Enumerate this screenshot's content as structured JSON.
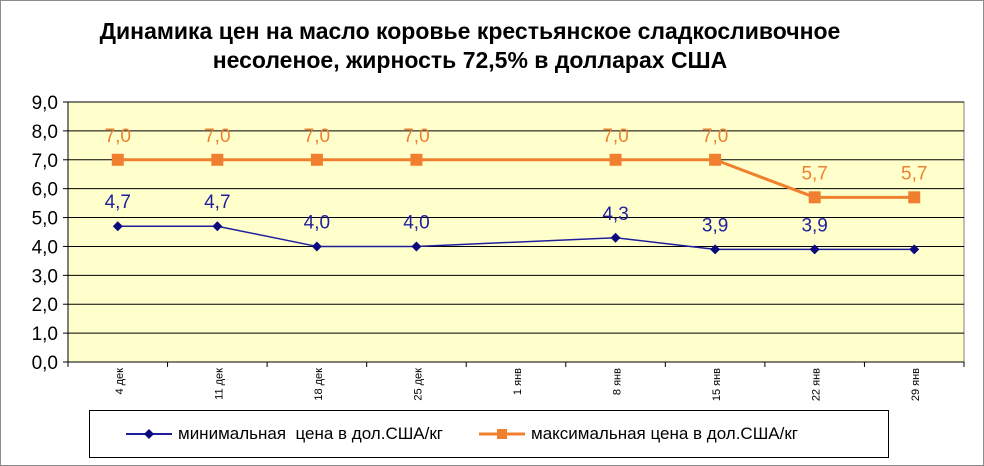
{
  "chart_data": {
    "type": "line",
    "title": "Динамика цен на масло коровье крестьянское сладкосливочное несоленое, жирность 72,5%  в долларах США",
    "categories": [
      "4 дек",
      "11 дек",
      "18 дек",
      "25 дек",
      "1 янв",
      "8 янв",
      "15 янв",
      "22 янв",
      "29 янв"
    ],
    "y_ticks": [
      "0,0",
      "1,0",
      "2,0",
      "3,0",
      "4,0",
      "5,0",
      "6,0",
      "7,0",
      "8,0",
      "9,0"
    ],
    "ylim": [
      0,
      9
    ],
    "grid": true,
    "legend_position": "bottom",
    "series": [
      {
        "name": "минимальная  цена в дол.США/кг",
        "color": "#1f1f9e",
        "marker": "diamond",
        "values": [
          4.7,
          4.7,
          4.0,
          4.0,
          null,
          4.3,
          3.9,
          3.9,
          3.9
        ],
        "labels": [
          "4,7",
          "4,7",
          "4,0",
          "4,0",
          "",
          "4,3",
          "3,9",
          "3,9",
          ""
        ]
      },
      {
        "name": "максимальная цена в дол.США/кг",
        "color": "#f08030",
        "marker": "square",
        "values": [
          7.0,
          7.0,
          7.0,
          7.0,
          null,
          7.0,
          7.0,
          5.7,
          5.7
        ],
        "labels": [
          "7,0",
          "7,0",
          "7,0",
          "7,0",
          "",
          "7,0",
          "7,0",
          "5,7",
          "5,7"
        ]
      }
    ]
  }
}
